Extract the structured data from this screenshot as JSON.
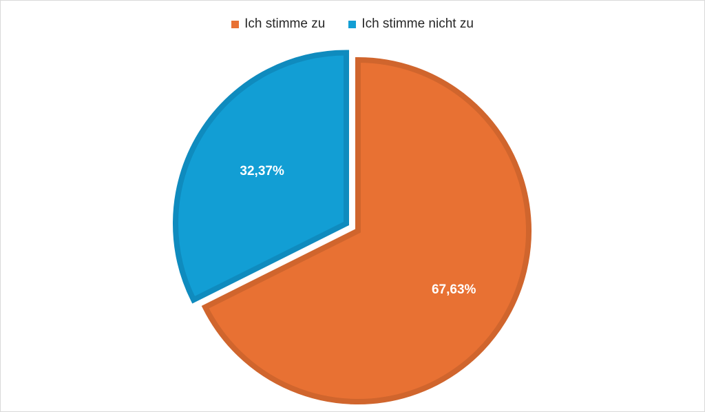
{
  "chart_data": {
    "type": "pie",
    "categories": [
      "Ich stimme zu",
      "Ich stimme nicht zu"
    ],
    "values": [
      67.63,
      32.37
    ],
    "labels": [
      "67,63%",
      "32,37%"
    ],
    "colors": [
      "#E87133",
      "#129ED4"
    ],
    "edge_colors": [
      "#D0652D",
      "#0F8BBE"
    ],
    "legend": {
      "position": "top"
    },
    "exploded": "Ich stimme nicht zu"
  }
}
